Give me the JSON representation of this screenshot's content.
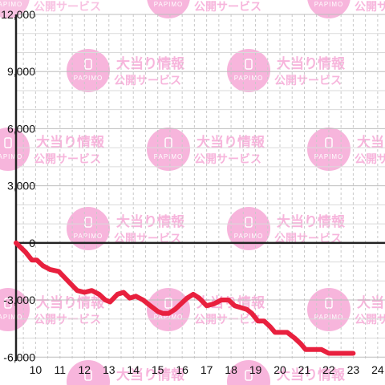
{
  "chart_data": {
    "type": "line",
    "title": "",
    "xlabel": "",
    "ylabel": "",
    "xlim": [
      9.2,
      24.3
    ],
    "ylim": [
      -6200,
      12000
    ],
    "y_ticks": [
      -6000,
      -3000,
      0,
      3000,
      6000,
      9000,
      12000
    ],
    "y_tick_labels": [
      "-6,000",
      "-3,000",
      "0",
      "3,000",
      "6,000",
      "9,000",
      "12,000"
    ],
    "x_ticks": [
      10,
      11,
      12,
      13,
      14,
      15,
      16,
      17,
      18,
      19,
      20,
      21,
      22,
      23,
      24
    ],
    "x_tick_labels": [
      "10",
      "11",
      "12",
      "13",
      "14",
      "15",
      "16",
      "17",
      "18",
      "19",
      "20",
      "21",
      "22",
      "23",
      "24"
    ],
    "grid": true,
    "legend": "none",
    "series": [
      {
        "color": "#e8203e",
        "x": [
          9.2,
          9.6,
          9.85,
          10.05,
          10.3,
          10.6,
          10.95,
          11.4,
          11.7,
          12.0,
          12.3,
          12.6,
          12.85,
          13.05,
          13.35,
          13.6,
          13.85,
          14.1,
          14.4,
          14.7,
          15.0,
          15.2,
          15.45,
          15.7,
          15.95,
          16.2,
          16.45,
          16.7,
          17.0,
          17.3,
          17.6,
          17.9,
          18.15,
          18.4,
          18.65,
          18.85,
          19.1,
          19.35,
          19.6,
          19.8,
          20.05,
          20.3,
          20.6,
          20.85,
          21.05,
          21.35,
          21.7,
          22.0,
          22.5,
          23.0
        ],
        "y": [
          0,
          -500,
          -900,
          -900,
          -1200,
          -1400,
          -1500,
          -2100,
          -2500,
          -2600,
          -2500,
          -2700,
          -3000,
          -3100,
          -2700,
          -2600,
          -2900,
          -2800,
          -3000,
          -3300,
          -3600,
          -3700,
          -3700,
          -3500,
          -3200,
          -2900,
          -2700,
          -2900,
          -3300,
          -3200,
          -3000,
          -3000,
          -3300,
          -3400,
          -3500,
          -3700,
          -4100,
          -4100,
          -4400,
          -4700,
          -4700,
          -4700,
          -5000,
          -5300,
          -5600,
          -5600,
          -5600,
          -5800,
          -5800,
          -5800
        ]
      }
    ]
  },
  "watermark": {
    "line1": "大当り情報",
    "line2": "公開サービス",
    "brand": "PAPIMO",
    "color": "#f7b5dc"
  }
}
